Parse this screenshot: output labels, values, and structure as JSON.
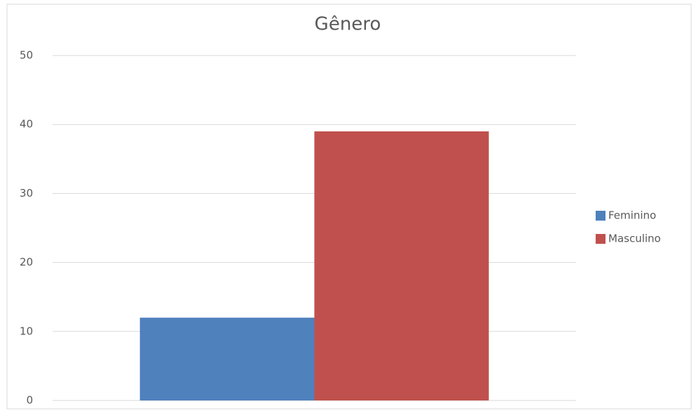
{
  "chart_data": {
    "type": "bar",
    "title": "Gênero",
    "categories": [
      null
    ],
    "series": [
      {
        "name": "Feminino",
        "color": "#4f81bd",
        "values": [
          12
        ]
      },
      {
        "name": "Masculino",
        "color": "#c0504d",
        "values": [
          39
        ]
      }
    ],
    "ylim": [
      0,
      50
    ],
    "yticks": [
      0,
      10,
      20,
      30,
      40,
      50
    ],
    "grid": true,
    "legend": "right"
  }
}
